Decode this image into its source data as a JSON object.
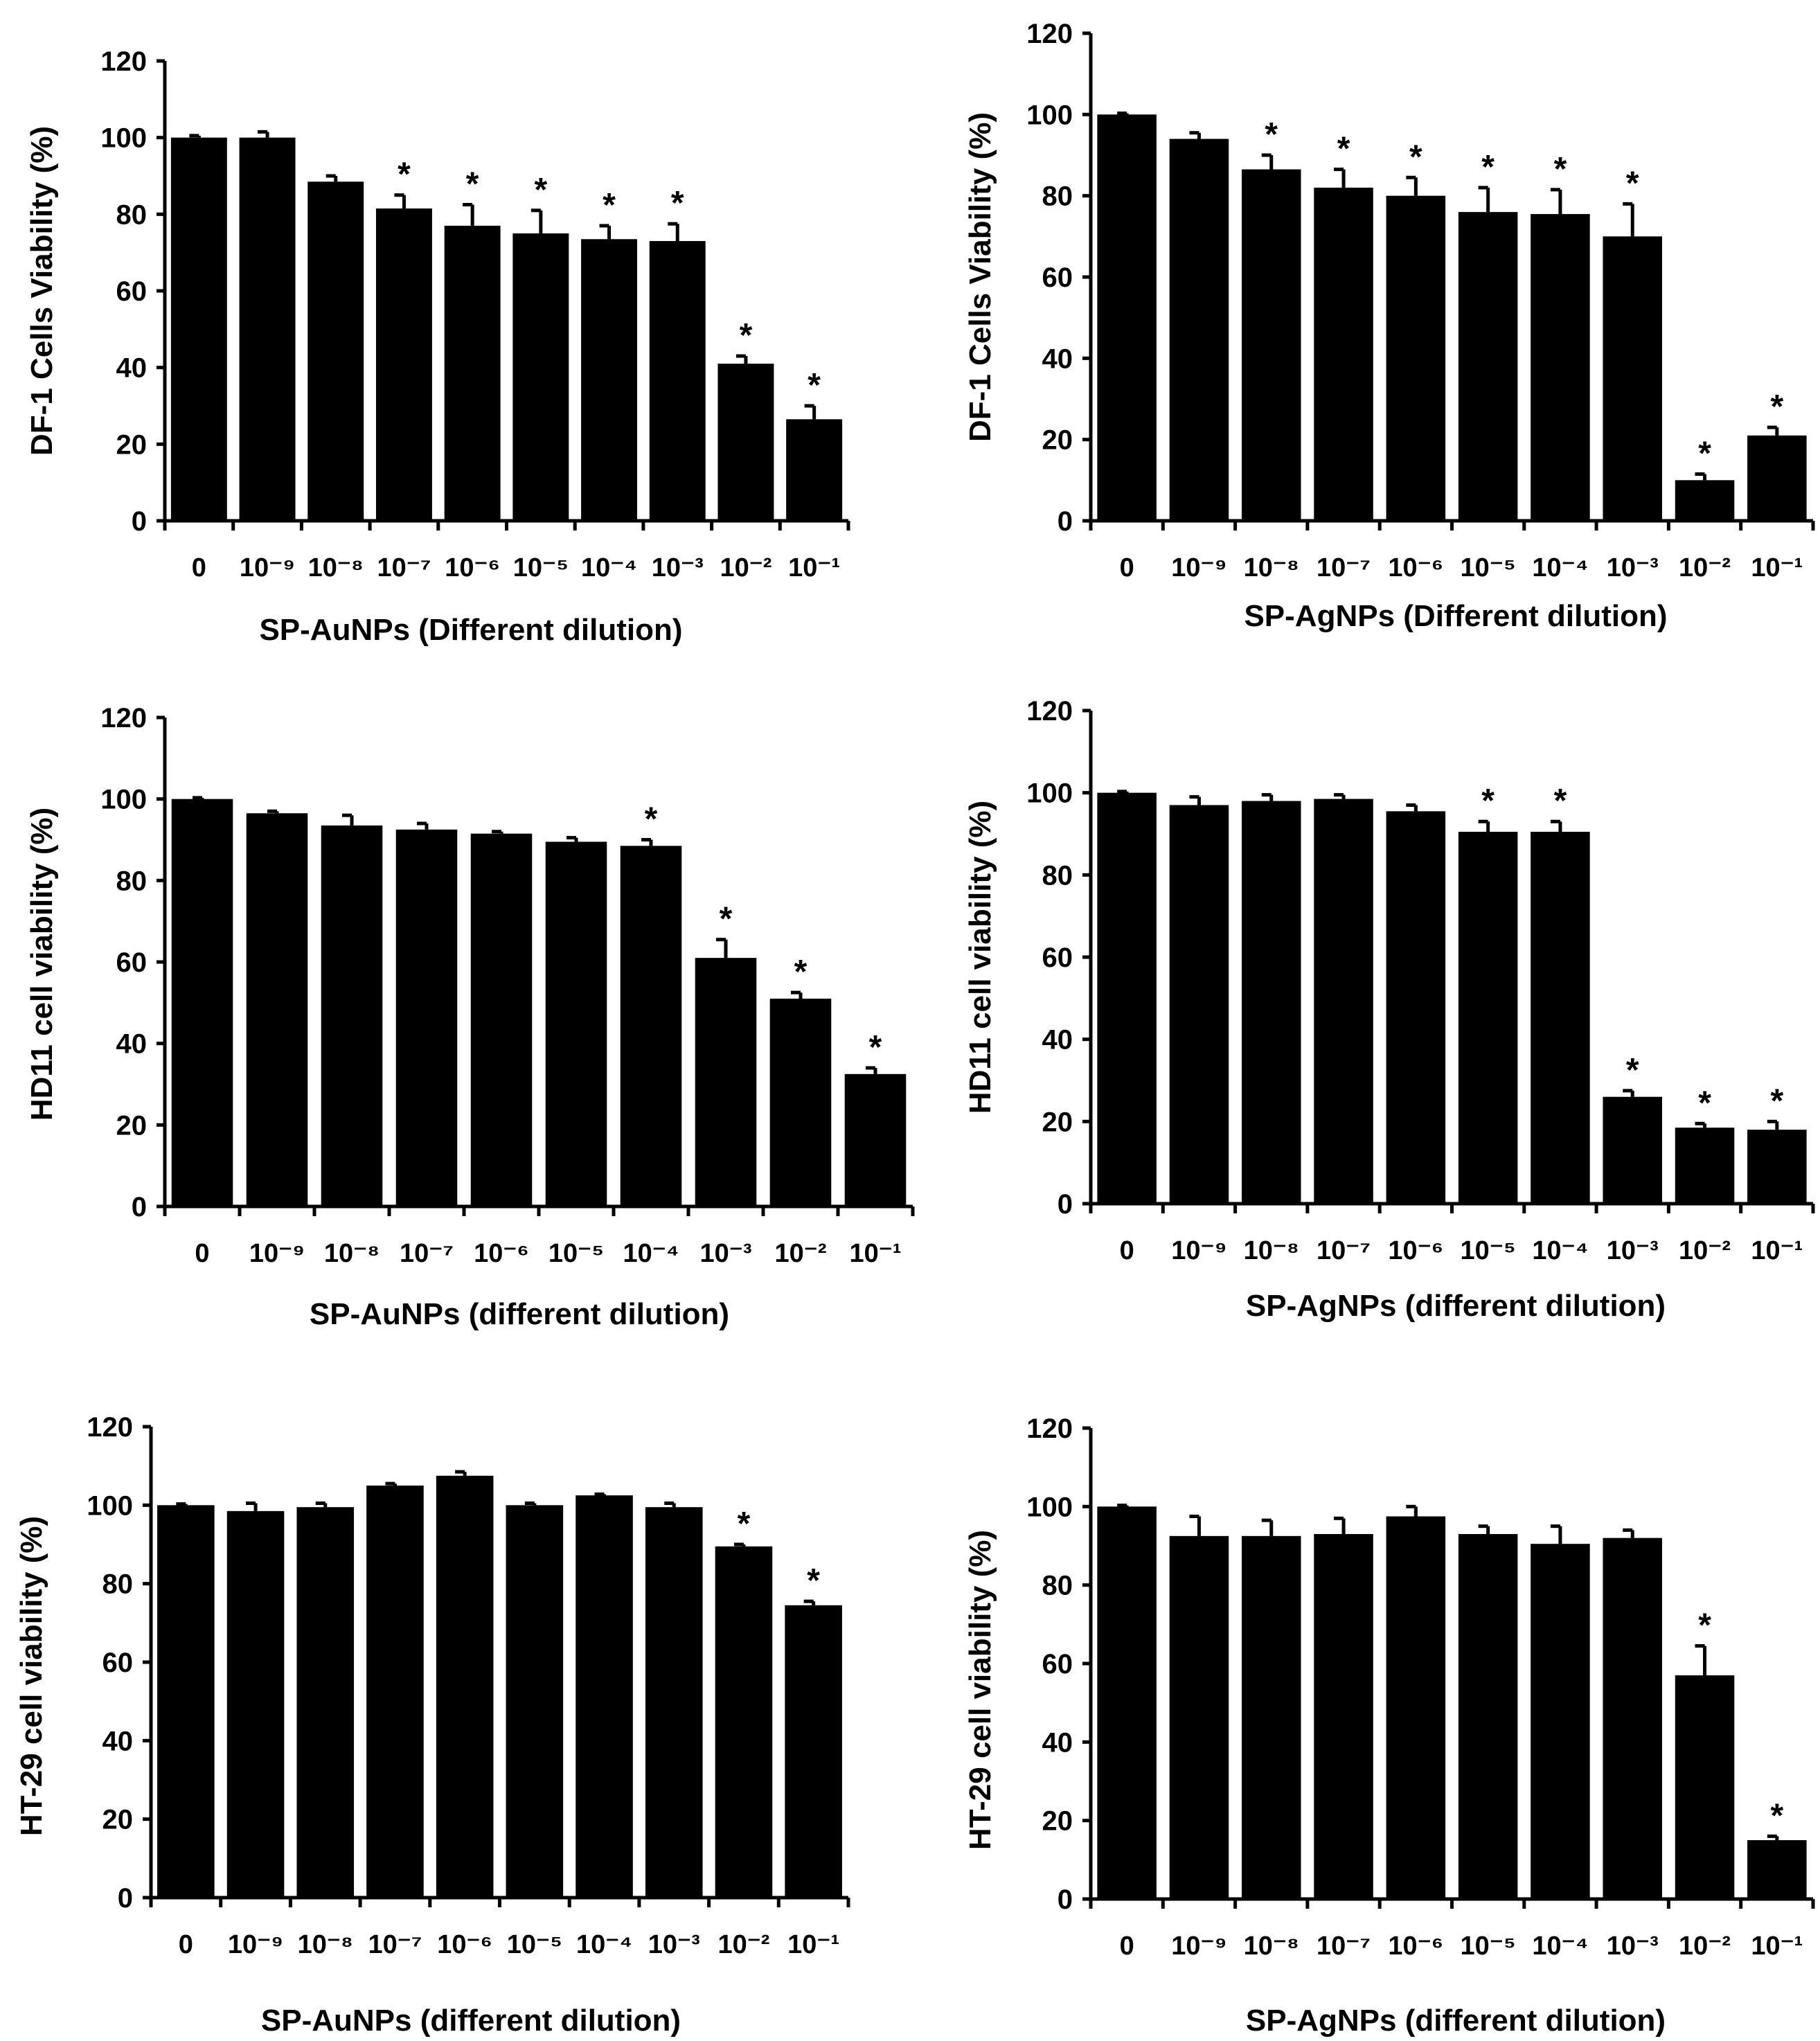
{
  "chart_data": [
    {
      "type": "bar",
      "panel": "DF-1 / SP-AuNPs",
      "categories": [
        "0",
        "10⁻⁹",
        "10⁻⁸",
        "10⁻⁷",
        "10⁻⁶",
        "10⁻⁵",
        "10⁻⁴",
        "10⁻³",
        "10⁻²",
        "10⁻¹"
      ],
      "values": [
        100,
        100,
        88.5,
        81.5,
        77,
        75,
        73.5,
        73,
        41,
        26.5
      ],
      "errors": [
        0.5,
        1.5,
        1.5,
        3.5,
        5.5,
        6,
        3.5,
        4.5,
        2,
        3.5
      ],
      "significant": [
        false,
        false,
        false,
        true,
        true,
        true,
        true,
        true,
        true,
        true
      ],
      "significance_marker": "*",
      "xlabel": "SP-AuNPs (Different dilution)",
      "ylabel": "DF-1 Cells Viability (%)",
      "ylim": [
        0,
        120
      ],
      "yticks": [
        0,
        20,
        40,
        60,
        80,
        100,
        120
      ]
    },
    {
      "type": "bar",
      "panel": "DF-1 / SP-AgNPs",
      "categories": [
        "0",
        "10⁻⁹",
        "10⁻⁸",
        "10⁻⁷",
        "10⁻⁶",
        "10⁻⁵",
        "10⁻⁴",
        "10⁻³",
        "10⁻²",
        "10⁻¹"
      ],
      "values": [
        100,
        94,
        86.5,
        82,
        80,
        76,
        75.5,
        70,
        10,
        21
      ],
      "errors": [
        0.3,
        1.5,
        3.5,
        4.5,
        4.5,
        6,
        6,
        8,
        1.5,
        2
      ],
      "significant": [
        false,
        false,
        true,
        true,
        true,
        true,
        true,
        true,
        true,
        true
      ],
      "significance_marker": "*",
      "xlabel": "SP-AgNPs (Different dilution)",
      "ylabel": "DF-1 Cells Viability (%)",
      "ylim": [
        0,
        120
      ],
      "yticks": [
        0,
        20,
        40,
        60,
        80,
        100,
        120
      ]
    },
    {
      "type": "bar",
      "panel": "HD11 / SP-AuNPs",
      "categories": [
        "0",
        "10⁻⁹",
        "10⁻⁸",
        "10⁻⁷",
        "10⁻⁶",
        "10⁻⁵",
        "10⁻⁴",
        "10⁻³",
        "10⁻²",
        "10⁻¹"
      ],
      "values": [
        100,
        96.5,
        93.5,
        92.5,
        91.5,
        89.5,
        88.5,
        61,
        51,
        32.5
      ],
      "errors": [
        0.3,
        0.5,
        2.5,
        1.5,
        0.5,
        1,
        1.5,
        4.5,
        1.5,
        1.5
      ],
      "significant": [
        false,
        false,
        false,
        false,
        false,
        false,
        true,
        true,
        true,
        true
      ],
      "significance_marker": "*",
      "xlabel": "SP-AuNPs (different dilution)",
      "ylabel": "HD11 cell viability (%)",
      "ylim": [
        0,
        120
      ],
      "yticks": [
        0,
        20,
        40,
        60,
        80,
        100,
        120
      ]
    },
    {
      "type": "bar",
      "panel": "HD11 / SP-AgNPs",
      "categories": [
        "0",
        "10⁻⁹",
        "10⁻⁸",
        "10⁻⁷",
        "10⁻⁶",
        "10⁻⁵",
        "10⁻⁴",
        "10⁻³",
        "10⁻²",
        "10⁻¹"
      ],
      "values": [
        100,
        97,
        98,
        98.5,
        95.5,
        90.5,
        90.5,
        26,
        18.5,
        18
      ],
      "errors": [
        0.3,
        2,
        1.5,
        1,
        1.5,
        2.5,
        2.5,
        1.5,
        1,
        2
      ],
      "significant": [
        false,
        false,
        false,
        false,
        false,
        true,
        true,
        true,
        true,
        true
      ],
      "significance_marker": "*",
      "xlabel": "SP-AgNPs (different dilution)",
      "ylabel": "HD11 cell viability (%)",
      "ylim": [
        0,
        120
      ],
      "yticks": [
        0,
        20,
        40,
        60,
        80,
        100,
        120
      ]
    },
    {
      "type": "bar",
      "panel": "HT-29 / SP-AuNPs",
      "categories": [
        "0",
        "10⁻⁹",
        "10⁻⁸",
        "10⁻⁷",
        "10⁻⁶",
        "10⁻⁵",
        "10⁻⁴",
        "10⁻³",
        "10⁻²",
        "10⁻¹"
      ],
      "values": [
        100,
        98.5,
        99.5,
        105,
        107.5,
        100,
        102.5,
        99.5,
        89.5,
        74.5
      ],
      "errors": [
        0.3,
        2,
        1,
        0.5,
        1,
        0.5,
        0.3,
        1,
        0.5,
        1
      ],
      "significant": [
        false,
        false,
        false,
        false,
        false,
        false,
        false,
        false,
        true,
        true
      ],
      "significance_marker": "*",
      "xlabel": "SP-AuNPs (different dilution)",
      "ylabel": "HT-29 cell viability (%)",
      "ylim": [
        0,
        120
      ],
      "yticks": [
        0,
        20,
        40,
        60,
        80,
        100,
        120
      ]
    },
    {
      "type": "bar",
      "panel": "HT-29 / SP-AgNPs",
      "categories": [
        "0",
        "10⁻⁹",
        "10⁻⁸",
        "10⁻⁷",
        "10⁻⁶",
        "10⁻⁵",
        "10⁻⁴",
        "10⁻³",
        "10⁻²",
        "10⁻¹"
      ],
      "values": [
        100,
        92.5,
        92.5,
        93,
        97.5,
        93,
        90.5,
        92,
        57,
        15
      ],
      "errors": [
        0.3,
        5,
        4,
        4,
        2.5,
        2,
        4.5,
        2,
        7.5,
        1
      ],
      "significant": [
        false,
        false,
        false,
        false,
        false,
        false,
        false,
        false,
        true,
        true
      ],
      "significance_marker": "*",
      "xlabel": "SP-AgNPs (different dilution)",
      "ylabel": "HT-29 cell viability (%)",
      "ylim": [
        0,
        120
      ],
      "yticks": [
        0,
        20,
        40,
        60,
        80,
        100,
        120
      ]
    }
  ]
}
